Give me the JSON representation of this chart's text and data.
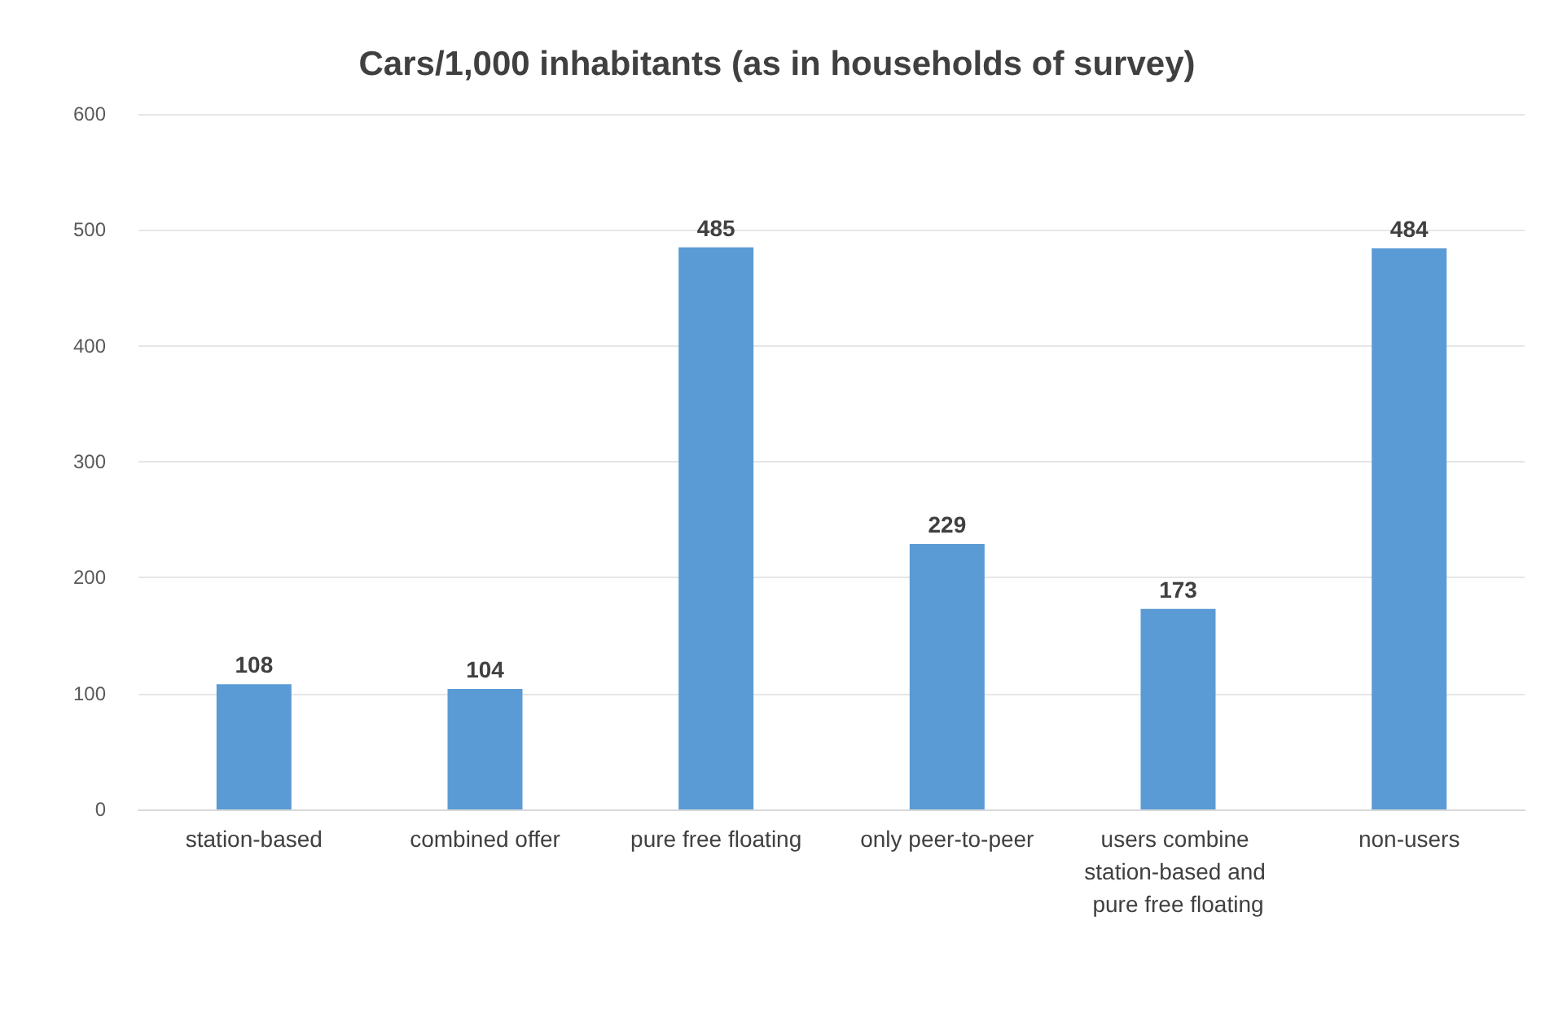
{
  "chart_data": {
    "type": "bar",
    "title": "Cars/1,000 inhabitants (as in households of survey)",
    "categories": [
      "station-based",
      "combined offer",
      "pure free floating",
      "only peer-to-peer",
      "users combine station-based and pure free floating",
      "non-users"
    ],
    "values": [
      108,
      104,
      485,
      229,
      173,
      484
    ],
    "color": "#5b9bd5",
    "ylim": [
      0,
      600
    ],
    "yticks": [
      0,
      100,
      200,
      300,
      400,
      500,
      600
    ],
    "grid": "y",
    "data_labels": true
  }
}
